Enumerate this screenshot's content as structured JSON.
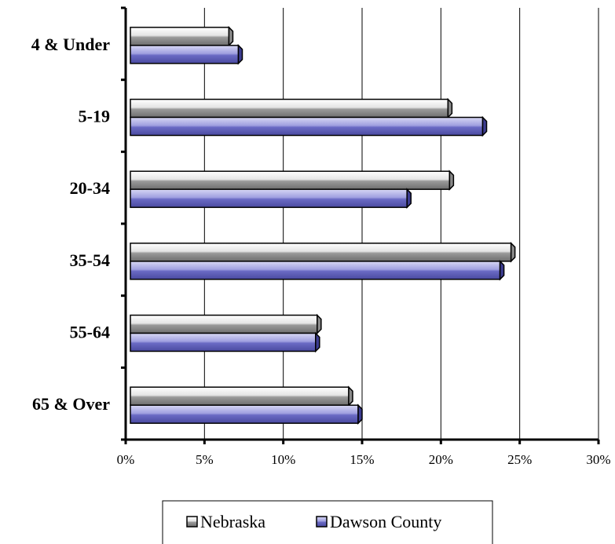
{
  "chart_data": {
    "type": "bar",
    "orientation": "horizontal",
    "categories": [
      "4 & Under",
      "5-19",
      "20-34",
      "35-54",
      "55-64",
      "65 & Over"
    ],
    "series": [
      {
        "name": "Nebraska",
        "values": [
          6.8,
          20.7,
          20.8,
          24.7,
          12.4,
          14.4
        ],
        "color": "#b0b0b0"
      },
      {
        "name": "Dawson County",
        "values": [
          7.4,
          22.9,
          18.1,
          24.0,
          12.3,
          15.0
        ],
        "color": "#7f7fd0"
      }
    ],
    "xlim": [
      0,
      30
    ],
    "x_ticks": [
      "0%",
      "5%",
      "10%",
      "15%",
      "20%",
      "25%",
      "30%"
    ],
    "grid": true,
    "legend_position": "bottom"
  }
}
